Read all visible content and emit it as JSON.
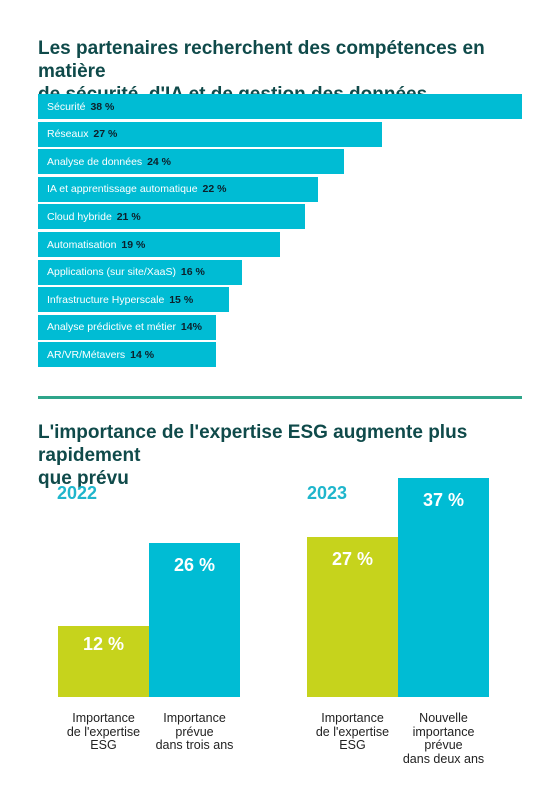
{
  "colors": {
    "title": "#0f4a4a",
    "hbar": "#00bcd4",
    "hbar_value": "#0d1f2a",
    "lime": "#c6d31c",
    "cyan": "#00bcd4",
    "year": "#1fb6cc",
    "divider": "#2ea58a"
  },
  "chart_data": [
    {
      "type": "bar",
      "orientation": "horizontal",
      "title": "Les partenaires recherchent des compétences en matière\nde sécurité, d'IA et de gestion des données",
      "categories": [
        "Sécurité",
        "Réseaux",
        "Analyse de données",
        "IA et apprentissage automatique",
        "Cloud hybride",
        "Automatisation",
        "Applications (sur site/XaaS)",
        "Infrastructure Hyperscale",
        "Analyse prédictive et métier",
        "AR/VR/Métavers"
      ],
      "values": [
        38,
        27,
        24,
        22,
        21,
        19,
        16,
        15,
        14,
        14
      ],
      "value_labels": [
        "38 %",
        "27 %",
        "24 %",
        "22 %",
        "21 %",
        "19 %",
        "16 %",
        "15 %",
        "14%",
        "14 %"
      ],
      "xlim": [
        0,
        38
      ]
    },
    {
      "type": "bar",
      "title": "L'importance de l'expertise ESG augmente plus rapidement\nque prévu",
      "groups": [
        {
          "year": "2022",
          "bars": [
            {
              "category": "Importance\nde l'expertise\nESG",
              "value": 12,
              "value_label": "12 %",
              "color": "#c6d31c"
            },
            {
              "category": "Importance\nprévue\ndans trois ans",
              "value": 26,
              "value_label": "26 %",
              "color": "#00bcd4"
            }
          ]
        },
        {
          "year": "2023",
          "bars": [
            {
              "category": "Importance\nde l'expertise\nESG",
              "value": 27,
              "value_label": "27 %",
              "color": "#c6d31c"
            },
            {
              "category": "Nouvelle\nimportance\nprévue\ndans deux ans",
              "value": 37,
              "value_label": "37 %",
              "color": "#00bcd4"
            }
          ]
        }
      ],
      "ylim": [
        0,
        37
      ]
    }
  ]
}
